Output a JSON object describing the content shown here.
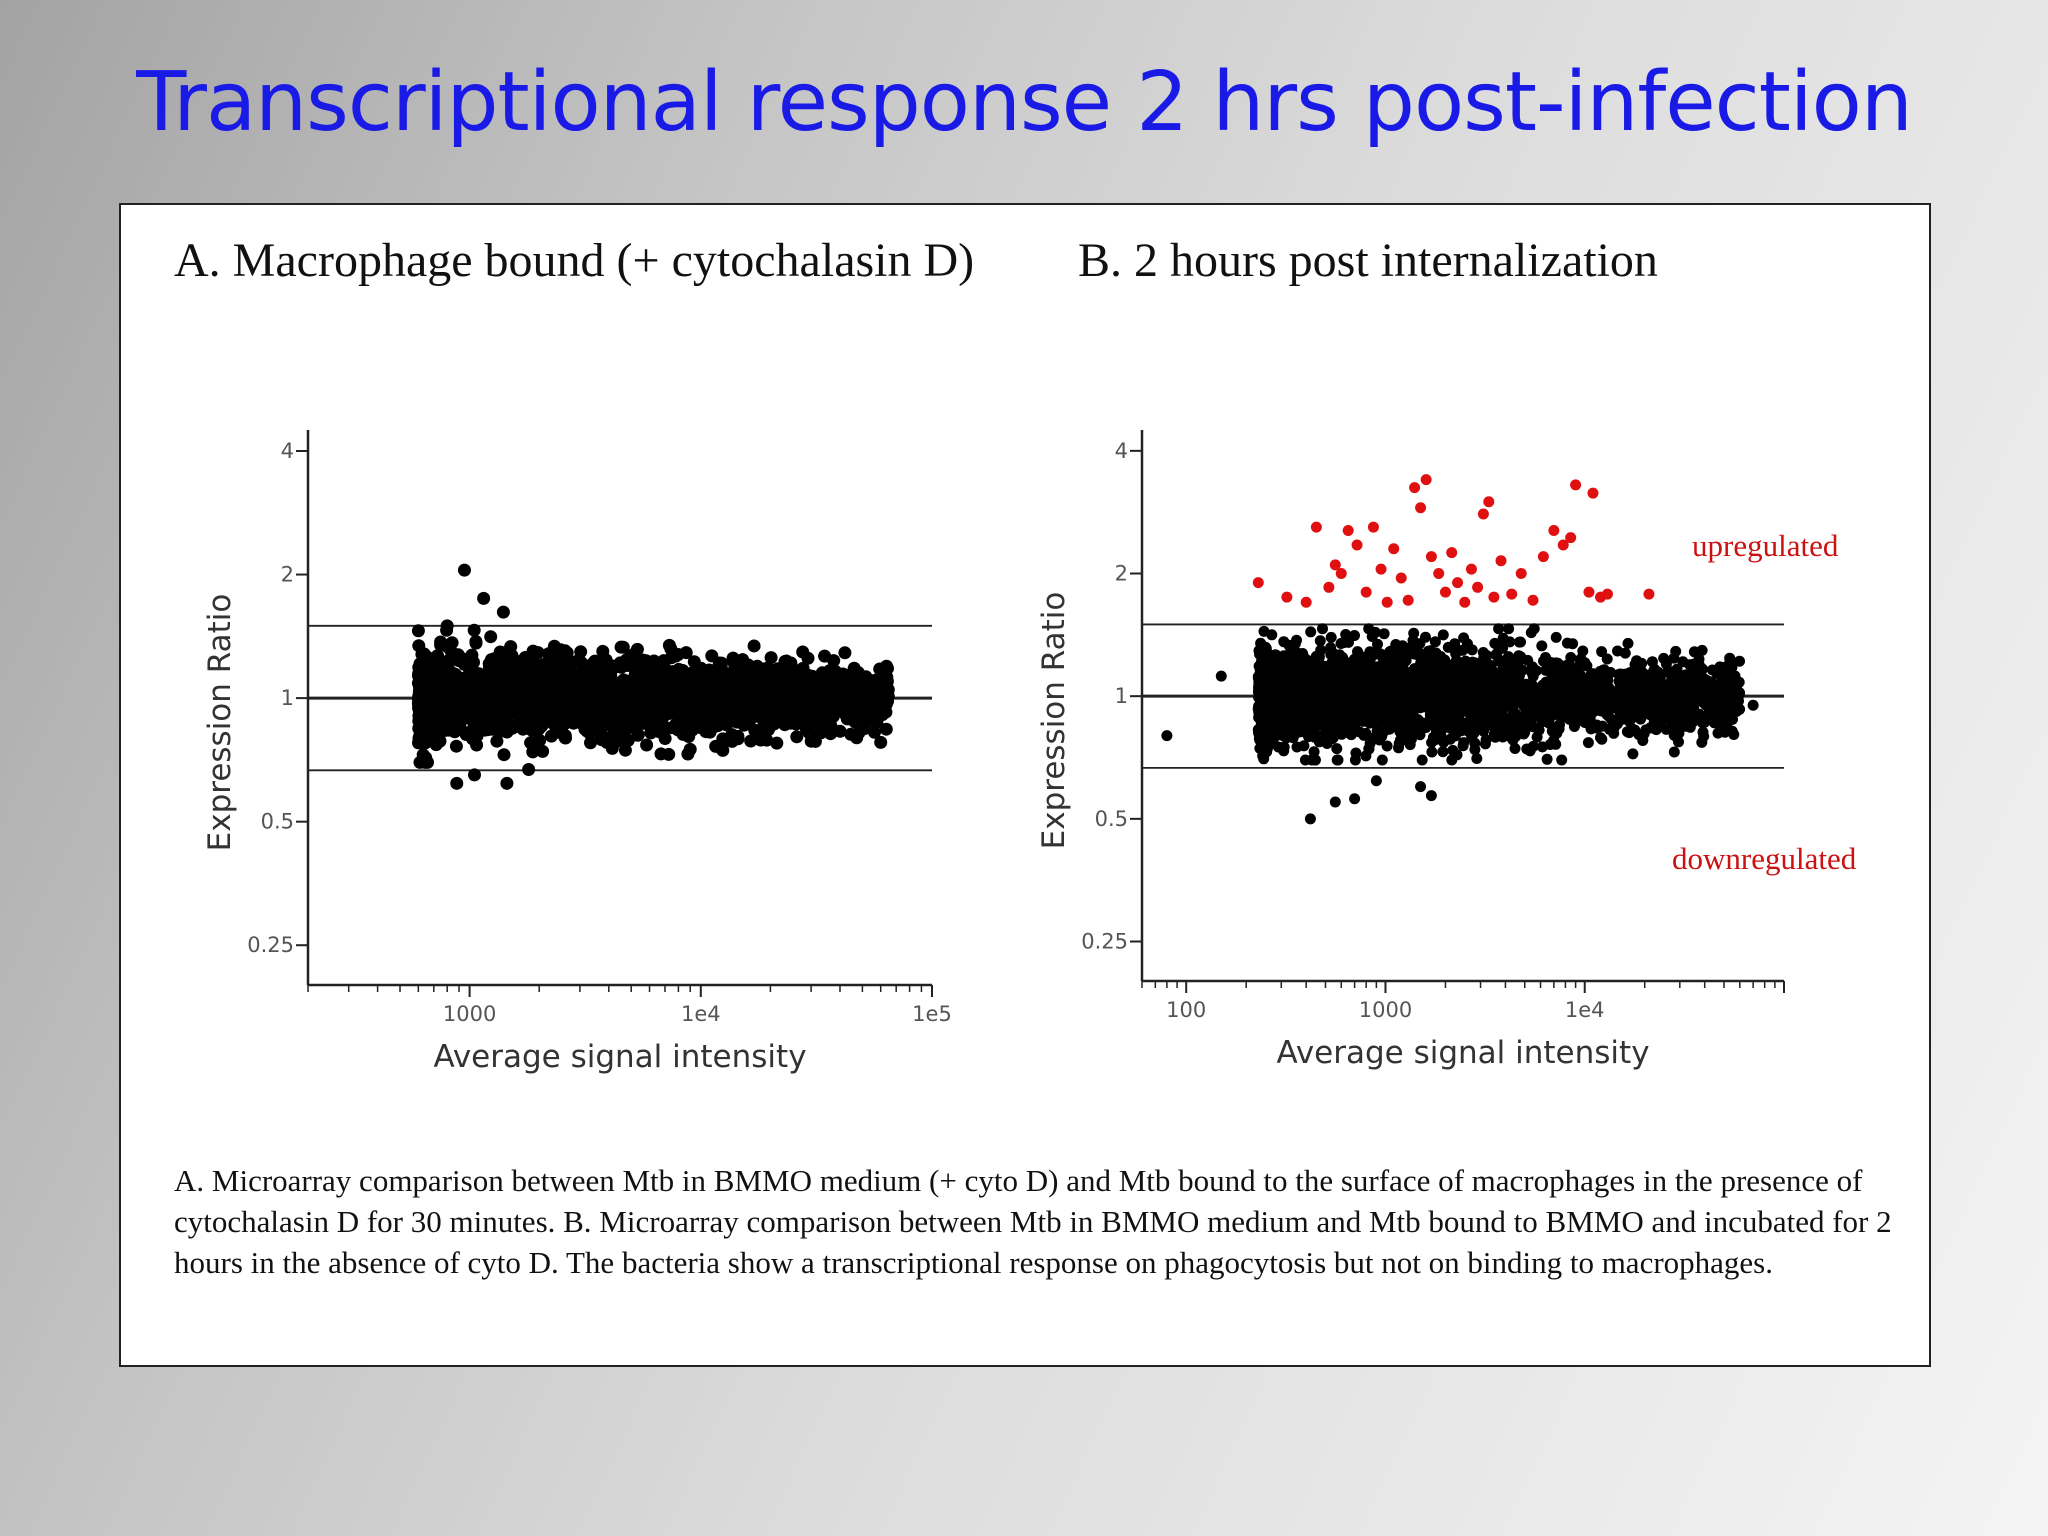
{
  "slide": {
    "title": "Transcriptional response 2 hrs post-infection",
    "panel_a_heading": "A. Macrophage bound (+ cytochalasin D)",
    "panel_b_heading": "B. 2 hours post internalization",
    "caption": "A. Microarray comparison between Mtb in BMMO medium (+ cyto D) and Mtb bound to the surface of macrophages in the presence of cytochalasin D for 30 minutes.  B. Microarray comparison between Mtb in BMMO medium and Mtb bound to BMMO and incubated for 2 hours in the absence of cyto D.  The bacteria show a transcriptional response on phagocytosis but not on binding to macrophages.",
    "colors": {
      "title": "#1a1ae6",
      "upregulated": "#e01010",
      "points": "#000000"
    }
  },
  "chart_data": [
    {
      "type": "scatter",
      "panel": "A",
      "xlabel": "Average signal intensity",
      "ylabel": "Expression Ratio",
      "x_scale": "log",
      "y_scale": "log2",
      "xlim": [
        200,
        100000
      ],
      "ylim": [
        0.2,
        4.5
      ],
      "x_tick_labels": [
        {
          "value": 1000,
          "label": "1000"
        },
        {
          "value": 10000,
          "label": "1e4"
        },
        {
          "value": 100000,
          "label": "1e5"
        }
      ],
      "y_tick_labels": [
        {
          "value": 4,
          "label": "4"
        },
        {
          "value": 2,
          "label": "2"
        },
        {
          "value": 1,
          "label": "1"
        },
        {
          "value": 0.5,
          "label": "0.5"
        },
        {
          "value": 0.25,
          "label": "0.25"
        }
      ],
      "threshold_lines": [
        1.5,
        1,
        0.667
      ],
      "cloud": {
        "x_range": [
          600,
          65000
        ],
        "center_ratio": 1.0,
        "spread_log2": 0.16,
        "n_points": 2000
      },
      "outliers": [
        {
          "x": 950,
          "y": 2.05
        },
        {
          "x": 1150,
          "y": 1.75
        },
        {
          "x": 1400,
          "y": 1.62
        },
        {
          "x": 800,
          "y": 1.5
        },
        {
          "x": 880,
          "y": 0.62
        },
        {
          "x": 1450,
          "y": 0.62
        },
        {
          "x": 1050,
          "y": 0.65
        },
        {
          "x": 1800,
          "y": 0.67
        },
        {
          "x": 17000,
          "y": 1.34
        },
        {
          "x": 60000,
          "y": 0.78
        },
        {
          "x": 9000,
          "y": 0.75
        }
      ]
    },
    {
      "type": "scatter",
      "panel": "B",
      "xlabel": "Average signal intensity",
      "ylabel": "Expression Ratio",
      "x_scale": "log",
      "y_scale": "log2",
      "xlim": [
        60,
        100000
      ],
      "ylim": [
        0.2,
        4.5
      ],
      "x_tick_labels": [
        {
          "value": 100,
          "label": "100"
        },
        {
          "value": 1000,
          "label": "1000"
        },
        {
          "value": 10000,
          "label": "1e4"
        }
      ],
      "y_tick_labels": [
        {
          "value": 4,
          "label": "4"
        },
        {
          "value": 2,
          "label": "2"
        },
        {
          "value": 1,
          "label": "1"
        },
        {
          "value": 0.5,
          "label": "0.5"
        },
        {
          "value": 0.25,
          "label": "0.25"
        }
      ],
      "threshold_lines": [
        1.5,
        1,
        0.667
      ],
      "cloud": {
        "x_range": [
          230,
          60000
        ],
        "center_ratio": 1.0,
        "spread_log2": 0.18,
        "n_points": 2500
      },
      "outliers": [
        {
          "x": 80,
          "y": 0.8
        },
        {
          "x": 150,
          "y": 1.12
        },
        {
          "x": 420,
          "y": 0.5
        },
        {
          "x": 560,
          "y": 0.55
        },
        {
          "x": 700,
          "y": 0.56
        },
        {
          "x": 1700,
          "y": 0.57
        },
        {
          "x": 1500,
          "y": 0.6
        },
        {
          "x": 900,
          "y": 0.62
        },
        {
          "x": 55000,
          "y": 0.82
        },
        {
          "x": 70000,
          "y": 0.95
        }
      ],
      "upregulated": [
        {
          "x": 230,
          "y": 1.9
        },
        {
          "x": 320,
          "y": 1.75
        },
        {
          "x": 400,
          "y": 1.7
        },
        {
          "x": 450,
          "y": 2.6
        },
        {
          "x": 520,
          "y": 1.85
        },
        {
          "x": 560,
          "y": 2.1
        },
        {
          "x": 600,
          "y": 2.0
        },
        {
          "x": 650,
          "y": 2.55
        },
        {
          "x": 720,
          "y": 2.35
        },
        {
          "x": 800,
          "y": 1.8
        },
        {
          "x": 870,
          "y": 2.6
        },
        {
          "x": 950,
          "y": 2.05
        },
        {
          "x": 1020,
          "y": 1.7
        },
        {
          "x": 1100,
          "y": 2.3
        },
        {
          "x": 1200,
          "y": 1.95
        },
        {
          "x": 1300,
          "y": 1.72
        },
        {
          "x": 1400,
          "y": 3.25
        },
        {
          "x": 1500,
          "y": 2.9
        },
        {
          "x": 1600,
          "y": 3.4
        },
        {
          "x": 1700,
          "y": 2.2
        },
        {
          "x": 1850,
          "y": 2.0
        },
        {
          "x": 2000,
          "y": 1.8
        },
        {
          "x": 2150,
          "y": 2.25
        },
        {
          "x": 2300,
          "y": 1.9
        },
        {
          "x": 2500,
          "y": 1.7
        },
        {
          "x": 2700,
          "y": 2.05
        },
        {
          "x": 2900,
          "y": 1.85
        },
        {
          "x": 3100,
          "y": 2.8
        },
        {
          "x": 3300,
          "y": 3.0
        },
        {
          "x": 3500,
          "y": 1.75
        },
        {
          "x": 3800,
          "y": 2.15
        },
        {
          "x": 4300,
          "y": 1.78
        },
        {
          "x": 4800,
          "y": 2.0
        },
        {
          "x": 5500,
          "y": 1.72
        },
        {
          "x": 6200,
          "y": 2.2
        },
        {
          "x": 7000,
          "y": 2.55
        },
        {
          "x": 7800,
          "y": 2.35
        },
        {
          "x": 8500,
          "y": 2.45
        },
        {
          "x": 9000,
          "y": 3.3
        },
        {
          "x": 10500,
          "y": 1.8
        },
        {
          "x": 11000,
          "y": 3.15
        },
        {
          "x": 12000,
          "y": 1.75
        },
        {
          "x": 13000,
          "y": 1.78
        },
        {
          "x": 21000,
          "y": 1.78
        }
      ],
      "annotations": [
        {
          "text": "upregulated"
        },
        {
          "text": "downregulated"
        }
      ]
    }
  ]
}
